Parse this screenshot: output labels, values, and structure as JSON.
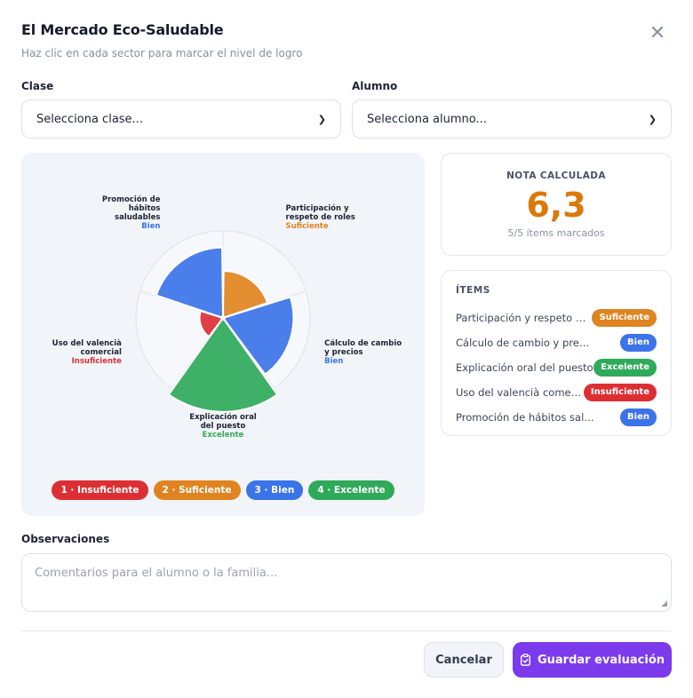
{
  "modal": {
    "title": "El Mercado Eco-Saludable",
    "subtitle": "Haz clic en cada sector para marcar el nivel de logro",
    "close_icon": "close-icon"
  },
  "form": {
    "class_label": "Clase",
    "class_value": "Selecciona clase...",
    "student_label": "Alumno",
    "student_value": "Selecciona alumno..."
  },
  "levels": [
    {
      "num": "1",
      "name": "Insuficiente",
      "label": "1 · Insuficiente",
      "color": "#dc2f34"
    },
    {
      "num": "2",
      "name": "Suficiente",
      "label": "2 · Suficiente",
      "color": "#df8420"
    },
    {
      "num": "3",
      "name": "Bien",
      "label": "3 · Bien",
      "color": "#3b73e8"
    },
    {
      "num": "4",
      "name": "Excelente",
      "label": "4 · Excelente",
      "color": "#2fa95a"
    }
  ],
  "chart_data": {
    "type": "polar-area",
    "max_level": 4,
    "sectors": [
      {
        "label_lines": [
          "Participación y",
          "respeto de roles"
        ],
        "level": 2,
        "level_name": "Suficiente"
      },
      {
        "label_lines": [
          "Cálculo de cambio",
          "y precios"
        ],
        "level": 3,
        "level_name": "Bien"
      },
      {
        "label_lines": [
          "Explicación oral",
          "del puesto"
        ],
        "level": 4,
        "level_name": "Excelente"
      },
      {
        "label_lines": [
          "Uso del valencià",
          "comercial"
        ],
        "level": 1,
        "level_name": "Insuficiente"
      },
      {
        "label_lines": [
          "Promoción de",
          "hábitos",
          "saludables"
        ],
        "level": 3,
        "level_name": "Bien"
      }
    ]
  },
  "grade": {
    "caption": "NOTA CALCULADA",
    "value": "6,3",
    "count": "5/5 ítems marcados"
  },
  "items": {
    "title": "ÍTEMS",
    "rows": [
      {
        "name": "Participación y respeto de roles",
        "level": "Suficiente",
        "color": "#df8420"
      },
      {
        "name": "Cálculo de cambio y precios",
        "level": "Bien",
        "color": "#3b73e8"
      },
      {
        "name": "Explicación oral del puesto",
        "level": "Excelente",
        "color": "#2fa95a"
      },
      {
        "name": "Uso del valencià comercial",
        "level": "Insuficiente",
        "color": "#dc2f34"
      },
      {
        "name": "Promoción de hábitos saludables",
        "level": "Bien",
        "color": "#3b73e8"
      }
    ]
  },
  "observations": {
    "label": "Observaciones",
    "placeholder": "Comentarios para el alumno o la familia..."
  },
  "actions": {
    "cancel_label": "Cancelar",
    "save_label": "Guardar evaluación",
    "save_icon": "clipboard-check-icon"
  }
}
